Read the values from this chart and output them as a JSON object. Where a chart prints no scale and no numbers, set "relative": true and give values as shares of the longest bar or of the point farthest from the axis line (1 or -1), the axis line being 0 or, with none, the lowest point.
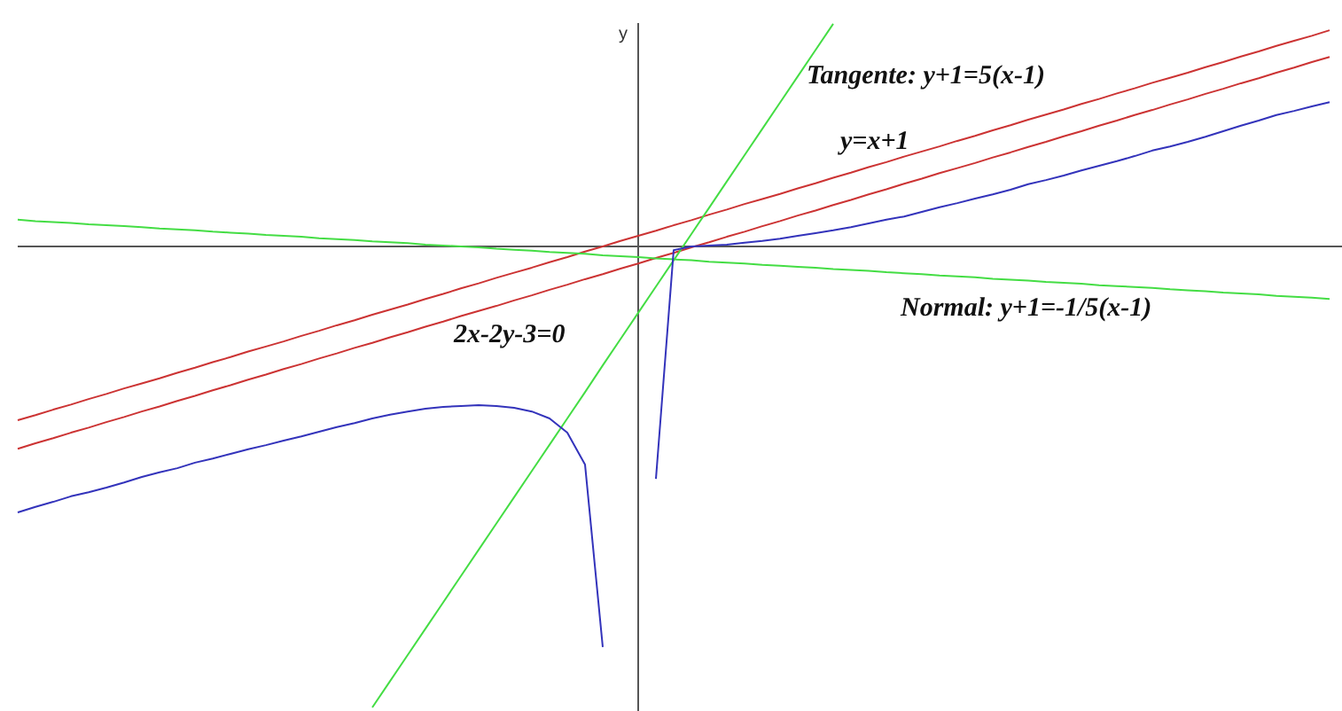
{
  "chart_data": {
    "type": "line",
    "relative": true,
    "ylabel": "y",
    "categories": [
      null,
      null,
      null,
      null,
      null,
      null,
      null,
      null,
      null,
      null,
      null,
      null,
      null,
      null,
      null,
      null,
      null,
      null,
      null,
      null,
      null,
      null,
      null,
      null,
      null,
      null,
      null,
      null,
      null,
      null,
      null,
      null,
      null,
      null,
      null,
      null,
      null,
      null,
      null,
      null,
      null,
      null,
      null,
      null,
      null,
      null,
      null,
      null,
      null,
      null,
      null,
      null,
      null,
      null,
      null,
      null,
      null,
      null,
      null,
      null,
      null,
      null,
      null,
      null,
      null,
      null,
      null,
      null,
      null,
      null,
      null,
      null,
      null,
      null,
      null
    ],
    "series": [
      {
        "name": "y=x+1",
        "color": "#cc3333",
        "values": [
          -0.377,
          -0.366,
          -0.354,
          -0.343,
          -0.331,
          -0.32,
          -0.308,
          -0.297,
          -0.286,
          -0.274,
          -0.263,
          -0.251,
          -0.24,
          -0.228,
          -0.217,
          -0.206,
          -0.194,
          -0.183,
          -0.171,
          -0.16,
          -0.148,
          -0.137,
          -0.126,
          -0.114,
          -0.103,
          -0.091,
          -0.08,
          -0.068,
          -0.057,
          -0.046,
          -0.034,
          -0.023,
          -0.011,
          0.0,
          0.012,
          0.023,
          0.034,
          0.046,
          0.057,
          0.069,
          0.08,
          0.092,
          0.103,
          0.114,
          0.126,
          0.137,
          0.149,
          0.16,
          0.172,
          0.183,
          0.195,
          0.206,
          0.217,
          0.229,
          0.24,
          0.252,
          0.263,
          0.275,
          0.286,
          0.297,
          0.309,
          0.32,
          0.332,
          0.343,
          0.355,
          0.366,
          0.377,
          0.389,
          0.4,
          0.412,
          0.423,
          0.435,
          0.446,
          0.457,
          0.469
        ]
      },
      {
        "name": "2x-2y-3=0",
        "color": "#cc3333",
        "values": [
          -0.439,
          -0.427,
          -0.416,
          -0.404,
          -0.393,
          -0.381,
          -0.37,
          -0.358,
          -0.347,
          -0.335,
          -0.324,
          -0.312,
          -0.301,
          -0.289,
          -0.278,
          -0.266,
          -0.255,
          -0.243,
          -0.232,
          -0.22,
          -0.209,
          -0.197,
          -0.186,
          -0.174,
          -0.163,
          -0.151,
          -0.14,
          -0.129,
          -0.117,
          -0.106,
          -0.094,
          -0.083,
          -0.071,
          -0.06,
          -0.048,
          -0.037,
          -0.025,
          -0.014,
          -0.002,
          0.009,
          0.021,
          0.032,
          0.044,
          0.055,
          0.067,
          0.078,
          0.09,
          0.101,
          0.113,
          0.124,
          0.136,
          0.147,
          0.159,
          0.17,
          0.181,
          0.193,
          0.204,
          0.216,
          0.227,
          0.239,
          0.25,
          0.262,
          0.273,
          0.285,
          0.296,
          0.308,
          0.319,
          0.331,
          0.342,
          0.354,
          0.365,
          0.377,
          0.388,
          0.4,
          0.411
        ]
      },
      {
        "name": "Tangente: y+1=5(x-1)",
        "color": "#44dd44",
        "values": [
          null,
          null,
          null,
          null,
          null,
          null,
          null,
          null,
          null,
          null,
          null,
          null,
          null,
          null,
          null,
          null,
          null,
          null,
          null,
          null,
          -1.0,
          -0.943,
          -0.886,
          -0.829,
          -0.772,
          -0.715,
          -0.658,
          -0.601,
          -0.544,
          -0.487,
          -0.43,
          -0.373,
          -0.316,
          -0.258,
          -0.201,
          -0.144,
          -0.087,
          -0.03,
          0.027,
          0.084,
          0.141,
          0.198,
          0.255,
          0.312,
          0.369,
          0.426,
          0.483,
          null,
          null,
          null,
          null,
          null,
          null,
          null,
          null,
          null,
          null,
          null,
          null,
          null,
          null,
          null,
          null,
          null,
          null,
          null,
          null,
          null,
          null,
          null,
          null,
          null,
          null,
          null,
          null
        ]
      },
      {
        "name": "Normal: y+1=-1/5(x-1)",
        "color": "#44dd44",
        "values": [
          0.058,
          0.055,
          0.053,
          0.051,
          0.048,
          0.046,
          0.044,
          0.042,
          0.039,
          0.037,
          0.035,
          0.032,
          0.03,
          0.028,
          0.025,
          0.023,
          0.021,
          0.018,
          0.016,
          0.014,
          0.011,
          0.009,
          0.007,
          0.004,
          0.002,
          0.0,
          -0.002,
          -0.005,
          -0.007,
          -0.009,
          -0.012,
          -0.014,
          -0.016,
          -0.019,
          -0.021,
          -0.023,
          -0.026,
          -0.028,
          -0.03,
          -0.033,
          -0.035,
          -0.037,
          -0.04,
          -0.042,
          -0.044,
          -0.046,
          -0.049,
          -0.051,
          -0.053,
          -0.056,
          -0.058,
          -0.06,
          -0.063,
          -0.065,
          -0.067,
          -0.07,
          -0.072,
          -0.074,
          -0.077,
          -0.079,
          -0.081,
          -0.084,
          -0.086,
          -0.088,
          -0.09,
          -0.093,
          -0.095,
          -0.097,
          -0.1,
          -0.102,
          -0.104,
          -0.107,
          -0.109,
          -0.111,
          -0.114
        ]
      },
      {
        "color": "#3333bb",
        "values": [
          -0.577,
          -0.565,
          -0.554,
          -0.542,
          -0.533,
          -0.523,
          -0.512,
          -0.5,
          -0.49,
          -0.481,
          -0.469,
          -0.46,
          -0.45,
          -0.44,
          -0.431,
          -0.421,
          -0.412,
          -0.402,
          -0.392,
          -0.383,
          -0.373,
          -0.365,
          -0.358,
          -0.352,
          -0.348,
          -0.346,
          -0.344,
          -0.346,
          -0.35,
          -0.358,
          -0.373,
          -0.404,
          -0.473,
          -0.869,
          null,
          null,
          -0.504,
          -0.008,
          0.0,
          0.002,
          0.004,
          0.008,
          0.012,
          0.017,
          0.023,
          0.029,
          0.035,
          0.042,
          0.05,
          0.058,
          0.065,
          0.075,
          0.085,
          0.094,
          0.104,
          0.113,
          0.123,
          0.135,
          0.144,
          0.154,
          0.165,
          0.175,
          0.185,
          0.196,
          0.208,
          0.217,
          0.227,
          0.238,
          0.25,
          0.262,
          0.273,
          0.285,
          0.294,
          0.304,
          0.313
        ]
      }
    ]
  }
}
